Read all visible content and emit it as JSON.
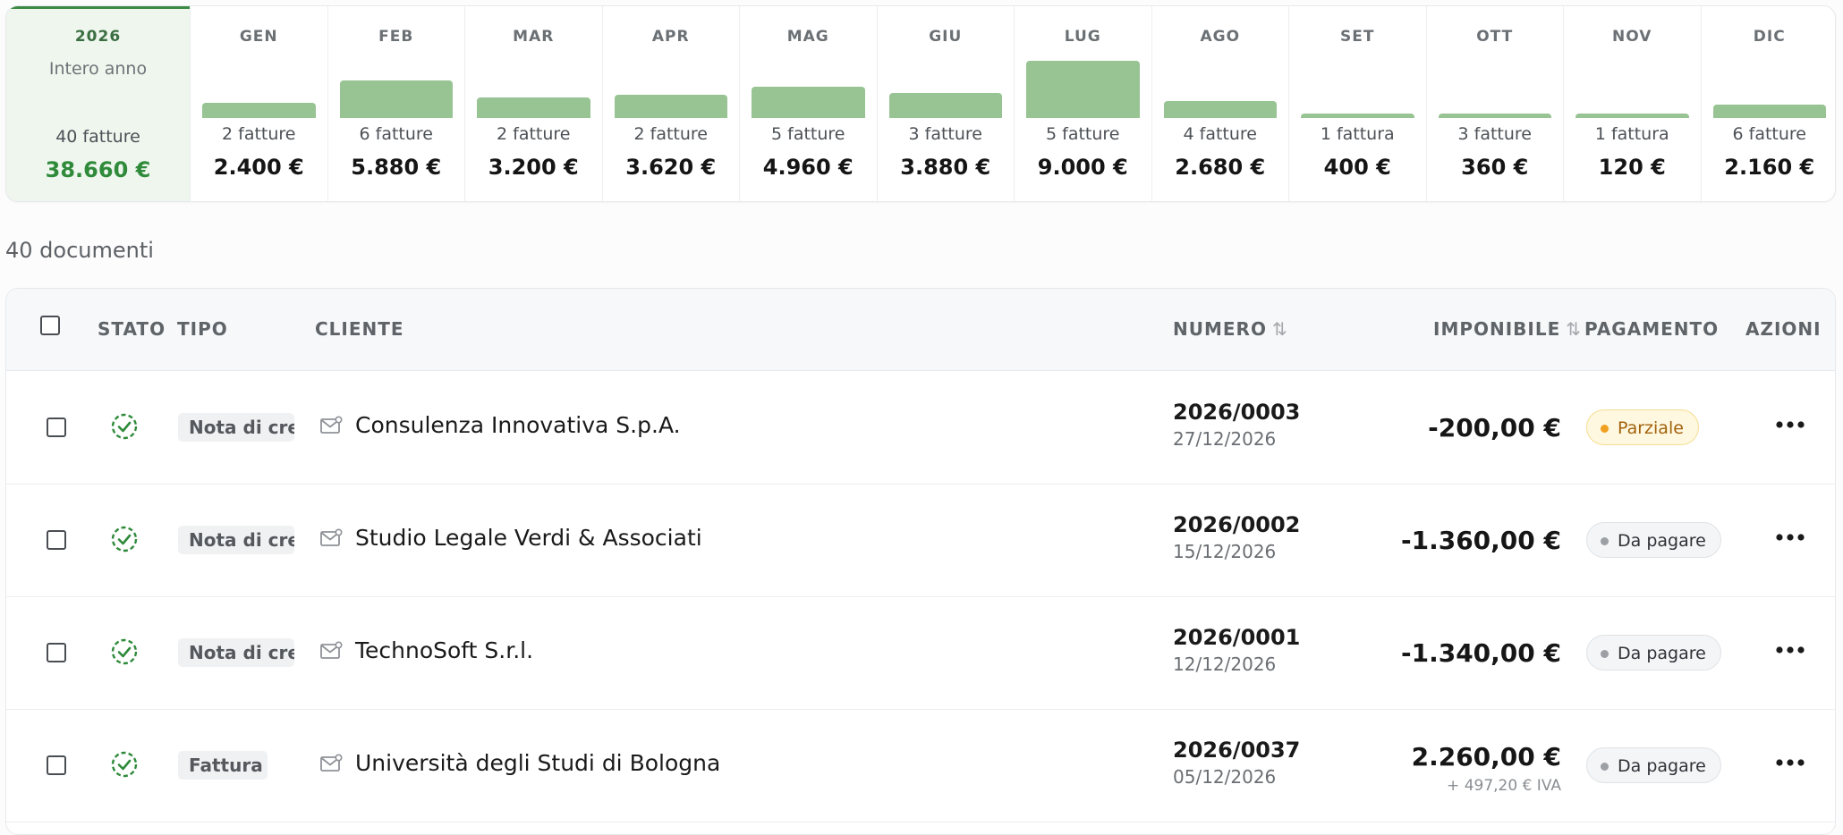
{
  "summary": {
    "year": {
      "label": "2026",
      "sub": "Intero anno",
      "count": "40 fatture",
      "amount": "38.660 €"
    },
    "months": [
      {
        "name": "GEN",
        "count": "2 fatture",
        "amount": "2.400 €",
        "value": 2400
      },
      {
        "name": "FEB",
        "count": "6 fatture",
        "amount": "5.880 €",
        "value": 5880
      },
      {
        "name": "MAR",
        "count": "2 fatture",
        "amount": "3.200 €",
        "value": 3200
      },
      {
        "name": "APR",
        "count": "2 fatture",
        "amount": "3.620 €",
        "value": 3620
      },
      {
        "name": "MAG",
        "count": "5 fatture",
        "amount": "4.960 €",
        "value": 4960
      },
      {
        "name": "GIU",
        "count": "3 fatture",
        "amount": "3.880 €",
        "value": 3880
      },
      {
        "name": "LUG",
        "count": "5 fatture",
        "amount": "9.000 €",
        "value": 9000
      },
      {
        "name": "AGO",
        "count": "4 fatture",
        "amount": "2.680 €",
        "value": 2680
      },
      {
        "name": "SET",
        "count": "1 fattura",
        "amount": "400 €",
        "value": 400
      },
      {
        "name": "OTT",
        "count": "3 fatture",
        "amount": "360 €",
        "value": 360
      },
      {
        "name": "NOV",
        "count": "1 fattura",
        "amount": "120 €",
        "value": 120
      },
      {
        "name": "DIC",
        "count": "6 fatture",
        "amount": "2.160 €",
        "value": 2160
      }
    ],
    "bar_color": "#98c393",
    "accent": "#2f8a3a"
  },
  "doc_count": "40 documenti",
  "table": {
    "headers": {
      "stato": "STATO",
      "tipo": "TIPO",
      "cliente": "CLIENTE",
      "numero": "NUMERO",
      "imponibile": "IMPONIBILE",
      "pagamento": "PAGAMENTO",
      "azioni": "AZIONI"
    },
    "sort_icon": "sort-arrows-icon",
    "rows": [
      {
        "tipo": "Nota di credito",
        "cliente": "Consulenza Innovativa S.p.A.",
        "numero": "2026/0003",
        "data": "27/12/2026",
        "imponibile": "-200,00 €",
        "iva": "",
        "pagamento": "Parziale",
        "stato_pagamento": "partial"
      },
      {
        "tipo": "Nota di credito",
        "cliente": "Studio Legale Verdi & Associati",
        "numero": "2026/0002",
        "data": "15/12/2026",
        "imponibile": "-1.360,00 €",
        "iva": "",
        "pagamento": "Da pagare",
        "stato_pagamento": "due"
      },
      {
        "tipo": "Nota di credito",
        "cliente": "TechnoSoft S.r.l.",
        "numero": "2026/0001",
        "data": "12/12/2026",
        "imponibile": "-1.340,00 €",
        "iva": "",
        "pagamento": "Da pagare",
        "stato_pagamento": "due"
      },
      {
        "tipo": "Fattura",
        "cliente": "Università degli Studi di Bologna",
        "numero": "2026/0037",
        "data": "05/12/2026",
        "imponibile": "2.260,00 €",
        "iva": "+ 497,20 € IVA",
        "pagamento": "Da pagare",
        "stato_pagamento": "due"
      }
    ]
  }
}
